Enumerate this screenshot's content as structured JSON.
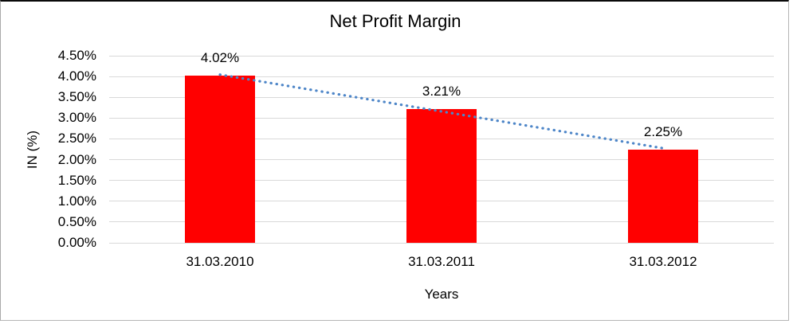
{
  "chart_data": {
    "type": "bar",
    "title": "Net Profit Margin",
    "xlabel": "Years",
    "ylabel": "IN (%)",
    "categories": [
      "31.03.2010",
      "31.03.2011",
      "31.03.2012"
    ],
    "values": [
      4.02,
      3.21,
      2.25
    ],
    "data_labels": [
      "4.02%",
      "3.21%",
      "2.25%"
    ],
    "ytick_labels": [
      "0.00%",
      "0.50%",
      "1.00%",
      "1.50%",
      "2.00%",
      "2.50%",
      "3.00%",
      "3.50%",
      "4.00%",
      "4.50%"
    ],
    "ylim": [
      0,
      4.5
    ],
    "ytick_step": 0.5,
    "grid": true,
    "legend": "none",
    "bar_color": "#ff0000",
    "gridline_color": "#d9d9d9",
    "text_color": "#000000",
    "trendline": {
      "type": "linear",
      "style": "dotted",
      "color": "#4e86c8"
    }
  }
}
